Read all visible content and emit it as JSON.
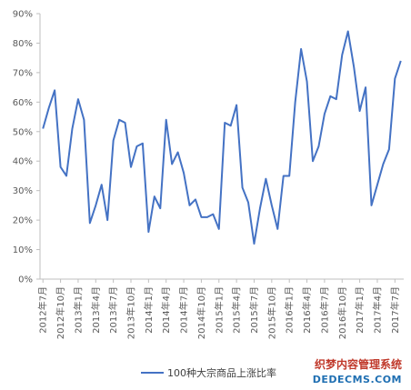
{
  "chart_data": {
    "type": "line",
    "title": "",
    "xlabel": "",
    "ylabel": "",
    "ylim": [
      0,
      90
    ],
    "ytick_labels": [
      "0%",
      "10%",
      "20%",
      "30%",
      "40%",
      "50%",
      "60%",
      "70%",
      "80%",
      "90%"
    ],
    "grid": false,
    "legend_position": "bottom",
    "x_tick_labels": [
      "2012年7月",
      "2012年10月",
      "2013年1月",
      "2013年4月",
      "2013年7月",
      "2013年10月",
      "2014年1月",
      "2014年4月",
      "2014年7月",
      "2014年10月",
      "2015年1月",
      "2015年4月",
      "2015年7月",
      "2015年10月",
      "2016年1月",
      "2016年4月",
      "2016年7月",
      "2016年10月",
      "2017年1月",
      "2017年4月",
      "2017年7月"
    ],
    "series": [
      {
        "name": "100种大宗商品上涨比率",
        "color": "#4472C4",
        "values": [
          51,
          58,
          64,
          38,
          35,
          51,
          61,
          54,
          19,
          25,
          32,
          20,
          47,
          54,
          53,
          38,
          45,
          46,
          16,
          28,
          24,
          54,
          39,
          43,
          36,
          25,
          27,
          21,
          21,
          22,
          17,
          53,
          52,
          59,
          31,
          26,
          12,
          24,
          34,
          25,
          17,
          35,
          35,
          60,
          78,
          67,
          40,
          45,
          56,
          62,
          61,
          76,
          84,
          72,
          57,
          65,
          25,
          32,
          39,
          44,
          68,
          74
        ]
      }
    ]
  },
  "watermark": {
    "cn": "织梦内容管理系统",
    "en": "DEDECMS.COM"
  }
}
